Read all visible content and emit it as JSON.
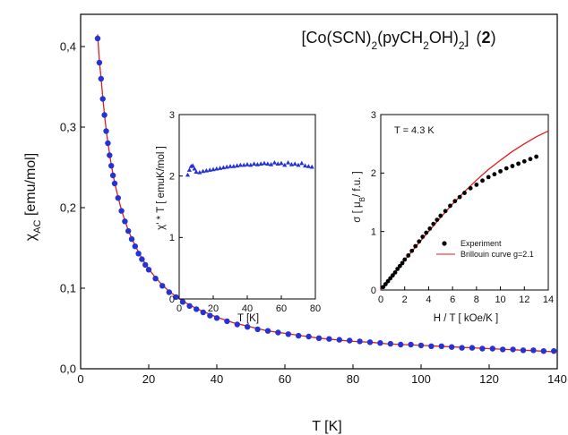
{
  "chart_data": [
    {
      "id": "main",
      "type": "scatter",
      "title_parts": {
        "a": "[Co(SCN)",
        "b": "2",
        "c": "(pyCH",
        "d": "2",
        "e": "OH)",
        "f": "2",
        "g": "]",
        "h": "(",
        "i": "2",
        "j": ")"
      },
      "xlabel": "T [K]",
      "ylabel_main": "χ",
      "ylabel_sub": "AC",
      "ylabel_rest": " [emu/mol]",
      "xlim": [
        0,
        140
      ],
      "ylim": [
        0,
        0.44
      ],
      "xticks": [
        0,
        20,
        40,
        60,
        80,
        100,
        120,
        140
      ],
      "xtick_labels": [
        "0",
        "20",
        "40",
        "60",
        "80",
        "100",
        "120",
        "140"
      ],
      "yticks": [
        0,
        0.1,
        0.2,
        0.3,
        0.4
      ],
      "ytick_labels": [
        "0,0",
        "0,1",
        "0,2",
        "0,3",
        "0,4"
      ],
      "series": [
        {
          "kind": "points",
          "color": "#2432d6",
          "x": [
            5,
            5.5,
            6,
            6.5,
            7,
            7.5,
            8,
            8.5,
            9,
            9.5,
            10,
            11,
            12,
            13,
            14,
            15,
            16,
            17,
            18,
            19,
            20,
            22,
            24,
            26,
            28,
            30,
            32,
            34,
            36,
            38,
            40,
            43,
            46,
            49,
            52,
            55,
            58,
            61,
            64,
            67,
            70,
            73,
            76,
            79,
            82,
            85,
            88,
            91,
            94,
            97,
            100,
            103,
            106,
            109,
            112,
            115,
            118,
            121,
            124,
            127,
            130,
            133,
            136,
            139
          ],
          "values": [
            0.41,
            0.38,
            0.36,
            0.335,
            0.315,
            0.295,
            0.28,
            0.265,
            0.252,
            0.24,
            0.23,
            0.212,
            0.196,
            0.183,
            0.171,
            0.161,
            0.152,
            0.143,
            0.136,
            0.129,
            0.123,
            0.112,
            0.103,
            0.095,
            0.089,
            0.083,
            0.078,
            0.074,
            0.07,
            0.066,
            0.063,
            0.059,
            0.055,
            0.052,
            0.049,
            0.047,
            0.045,
            0.043,
            0.041,
            0.04,
            0.038,
            0.037,
            0.036,
            0.035,
            0.034,
            0.033,
            0.032,
            0.031,
            0.03,
            0.03,
            0.029,
            0.028,
            0.028,
            0.027,
            0.026,
            0.026,
            0.025,
            0.025,
            0.024,
            0.024,
            0.023,
            0.023,
            0.022,
            0.022
          ]
        },
        {
          "kind": "line",
          "color": "#e21b1b",
          "x": [
            5,
            5.5,
            6,
            6.5,
            7,
            7.5,
            8,
            9,
            10,
            11,
            12,
            13,
            14,
            15,
            16,
            18,
            20,
            22,
            24,
            26,
            28,
            30,
            33,
            36,
            40,
            45,
            50,
            55,
            60,
            65,
            70,
            75,
            80,
            85,
            90,
            95,
            100,
            105,
            110,
            115,
            120,
            125,
            130,
            135,
            140
          ],
          "values": [
            0.415,
            0.382,
            0.361,
            0.337,
            0.316,
            0.297,
            0.281,
            0.253,
            0.231,
            0.213,
            0.197,
            0.184,
            0.172,
            0.162,
            0.153,
            0.137,
            0.124,
            0.113,
            0.104,
            0.096,
            0.09,
            0.084,
            0.077,
            0.071,
            0.064,
            0.057,
            0.052,
            0.047,
            0.044,
            0.041,
            0.038,
            0.036,
            0.034,
            0.033,
            0.031,
            0.03,
            0.029,
            0.028,
            0.027,
            0.026,
            0.025,
            0.024,
            0.023,
            0.022,
            0.021
          ]
        }
      ]
    },
    {
      "id": "inset1",
      "type": "scatter",
      "xlabel": "T [K]",
      "ylabel": "χ' * T [ emuK/mol ]",
      "xlim": [
        0,
        80
      ],
      "ylim": [
        0,
        3
      ],
      "xticks": [
        0,
        20,
        40,
        60,
        80
      ],
      "xtick_labels": [
        "0",
        "20",
        "40",
        "60",
        "80"
      ],
      "yticks": [
        0,
        1,
        2,
        3
      ],
      "ytick_labels": [
        "0",
        "1",
        "2",
        "3"
      ],
      "series": [
        {
          "kind": "points",
          "color": "#2432d6",
          "x": [
            5,
            6,
            7,
            8,
            9,
            10,
            12,
            14,
            16,
            18,
            20,
            22,
            24,
            26,
            28,
            30,
            32,
            34,
            36,
            38,
            40,
            42,
            44,
            46,
            48,
            50,
            52,
            54,
            56,
            58,
            60,
            62,
            64,
            66,
            68,
            70,
            72,
            74,
            76,
            78
          ],
          "values": [
            2.02,
            2.1,
            2.16,
            2.17,
            2.12,
            2.07,
            2.06,
            2.08,
            2.09,
            2.1,
            2.11,
            2.12,
            2.13,
            2.14,
            2.15,
            2.16,
            2.16,
            2.17,
            2.18,
            2.18,
            2.19,
            2.18,
            2.2,
            2.19,
            2.2,
            2.21,
            2.2,
            2.19,
            2.22,
            2.2,
            2.21,
            2.18,
            2.22,
            2.19,
            2.2,
            2.18,
            2.21,
            2.17,
            2.16,
            2.15
          ]
        }
      ]
    },
    {
      "id": "inset2",
      "type": "scatter",
      "xlabel": "H / T [ kOe/K ]",
      "ylabel_parts": {
        "a": "σ [ μ",
        "b": "B",
        "c": "/ f.u. ]"
      },
      "annotation": "T = 4.3 K",
      "xlim": [
        0,
        14
      ],
      "ylim": [
        0,
        3
      ],
      "xticks": [
        0,
        2,
        4,
        6,
        8,
        10,
        12,
        14
      ],
      "xtick_labels": [
        "0",
        "2",
        "4",
        "6",
        "8",
        "10",
        "12",
        "14"
      ],
      "yticks": [
        0,
        1,
        2,
        3
      ],
      "ytick_labels": [
        "0",
        "1",
        "2",
        "3"
      ],
      "legend": [
        "Experiment",
        "Brillouin curve g=2.1"
      ],
      "series": [
        {
          "kind": "points",
          "name": "Experiment",
          "color": "#000000",
          "x": [
            0.2,
            0.4,
            0.6,
            0.8,
            1.0,
            1.2,
            1.4,
            1.6,
            1.8,
            2.0,
            2.3,
            2.6,
            2.9,
            3.2,
            3.5,
            3.8,
            4.1,
            4.4,
            4.7,
            5.0,
            5.4,
            5.8,
            6.2,
            6.6,
            7.0,
            7.5,
            8.0,
            8.5,
            9.0,
            9.5,
            10.0,
            10.5,
            11.0,
            11.5,
            12.0,
            12.5,
            13.0
          ],
          "values": [
            0.05,
            0.1,
            0.15,
            0.2,
            0.25,
            0.3,
            0.36,
            0.41,
            0.46,
            0.52,
            0.59,
            0.67,
            0.75,
            0.83,
            0.91,
            0.98,
            1.05,
            1.13,
            1.2,
            1.27,
            1.35,
            1.44,
            1.52,
            1.59,
            1.66,
            1.74,
            1.8,
            1.87,
            1.93,
            1.98,
            2.03,
            2.08,
            2.12,
            2.16,
            2.2,
            2.24,
            2.28
          ]
        },
        {
          "kind": "line",
          "name": "Brillouin curve g=2.1",
          "color": "#e21b1b",
          "x": [
            0,
            1,
            2,
            3,
            4,
            5,
            6,
            7,
            8,
            9,
            10,
            11,
            12,
            13,
            14
          ],
          "values": [
            0,
            0.26,
            0.51,
            0.76,
            1.0,
            1.24,
            1.47,
            1.68,
            1.88,
            2.06,
            2.22,
            2.37,
            2.5,
            2.62,
            2.72
          ]
        }
      ]
    }
  ]
}
